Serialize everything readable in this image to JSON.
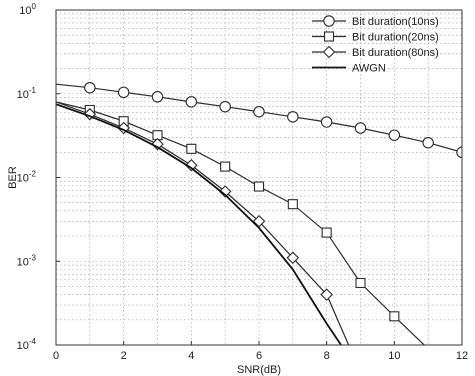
{
  "chart_data": {
    "type": "line",
    "title": "",
    "xlabel": "SNR(dB)",
    "ylabel": "BER",
    "xlim": [
      0,
      12
    ],
    "ylim": [
      0.0001,
      1
    ],
    "yscale": "log",
    "grid": true,
    "legend_position": "top-right",
    "x_ticks": [
      0,
      2,
      4,
      6,
      8,
      10,
      12
    ],
    "x_tick_labels": [
      "0",
      "2",
      "4",
      "6",
      "8",
      "10",
      "12"
    ],
    "y_ticks": [
      0.0001,
      0.001,
      0.01,
      0.1,
      1
    ],
    "y_tick_labels": [
      {
        "base": "10",
        "exp": "-4"
      },
      {
        "base": "10",
        "exp": "-3"
      },
      {
        "base": "10",
        "exp": "-2"
      },
      {
        "base": "10",
        "exp": "-1"
      },
      {
        "base": "10",
        "exp": "0"
      }
    ],
    "series": [
      {
        "name": "Bit duration(10ns)",
        "marker": "circle",
        "x": [
          0,
          1,
          2,
          3,
          4,
          5,
          6,
          7,
          8,
          9,
          10,
          11,
          12
        ],
        "y": [
          0.13,
          0.118,
          0.104,
          0.092,
          0.08,
          0.07,
          0.061,
          0.053,
          0.046,
          0.039,
          0.032,
          0.026,
          0.02
        ],
        "marker_x": [
          1,
          2,
          3,
          4,
          5,
          6,
          7,
          8,
          9,
          10,
          11,
          12
        ],
        "marker_y": [
          0.118,
          0.104,
          0.092,
          0.08,
          0.07,
          0.061,
          0.053,
          0.046,
          0.039,
          0.032,
          0.026,
          0.02
        ]
      },
      {
        "name": "Bit duration(20ns)",
        "marker": "square",
        "x": [
          0,
          1,
          2,
          3,
          4,
          5,
          6,
          7,
          8,
          9,
          10,
          11
        ],
        "y": [
          0.08,
          0.064,
          0.047,
          0.032,
          0.022,
          0.0135,
          0.0078,
          0.0048,
          0.0022,
          0.00055,
          0.00022,
          9e-05
        ],
        "marker_x": [
          1,
          2,
          3,
          4,
          5,
          6,
          7,
          8,
          9,
          10
        ],
        "marker_y": [
          0.064,
          0.047,
          0.032,
          0.022,
          0.0135,
          0.0078,
          0.0048,
          0.0022,
          0.00055,
          0.00022
        ]
      },
      {
        "name": "Bit duration(80ns)",
        "marker": "diamond",
        "x": [
          0,
          1,
          2,
          3,
          4,
          5,
          6,
          7,
          8,
          8.7
        ],
        "y": [
          0.08,
          0.057,
          0.039,
          0.025,
          0.014,
          0.0068,
          0.003,
          0.0011,
          0.0004,
          9e-05
        ],
        "marker_x": [
          1,
          2,
          3,
          4,
          5,
          6,
          7,
          8
        ],
        "marker_y": [
          0.057,
          0.039,
          0.025,
          0.014,
          0.0068,
          0.003,
          0.0011,
          0.0004
        ]
      },
      {
        "name": "AWGN",
        "marker": "none",
        "x": [
          0,
          1,
          2,
          3,
          4,
          5,
          6,
          7,
          8,
          8.5
        ],
        "y": [
          0.075,
          0.054,
          0.037,
          0.023,
          0.013,
          0.0062,
          0.0025,
          0.0008,
          0.00018,
          9e-05
        ],
        "marker_x": [],
        "marker_y": []
      }
    ]
  }
}
